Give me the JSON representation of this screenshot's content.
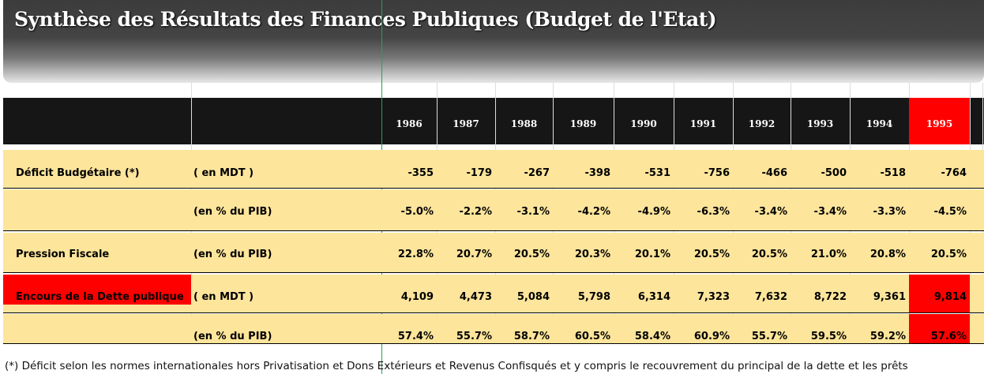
{
  "header": {
    "title": "Synthèse des Résultats des Finances Publiques (Budget de l'Etat)"
  },
  "table": {
    "years": [
      "1986",
      "1987",
      "1988",
      "1989",
      "1990",
      "1991",
      "1992",
      "1993",
      "1994",
      "1995"
    ],
    "rows": [
      {
        "label": "Déficit Budgétaire (*)",
        "unit": "( en MDT )",
        "values": [
          "-355",
          "-179",
          "-267",
          "-398",
          "-531",
          "-756",
          "-466",
          "-500",
          "-518",
          "-764"
        ]
      },
      {
        "unit": "(en % du PIB)",
        "values": [
          "-5.0%",
          "-2.2%",
          "-3.1%",
          "-4.2%",
          "-4.9%",
          "-6.3%",
          "-3.4%",
          "-3.4%",
          "-3.3%",
          "-4.5%"
        ]
      },
      {
        "label": "Pression Fiscale",
        "unit": "(en % du PIB)",
        "values": [
          "22.8%",
          "20.7%",
          "20.5%",
          "20.3%",
          "20.1%",
          "20.5%",
          "20.5%",
          "21.0%",
          "20.8%",
          "20.5%"
        ]
      },
      {
        "label": "Encours de la Dette publique",
        "unit": "( en MDT )",
        "values": [
          "4,109",
          "4,473",
          "5,084",
          "5,798",
          "6,314",
          "7,323",
          "7,632",
          "8,722",
          "9,361",
          "9,814"
        ]
      },
      {
        "unit": "(en % du PIB)",
        "values": [
          "57.4%",
          "55.7%",
          "58.7%",
          "60.5%",
          "58.4%",
          "60.9%",
          "55.7%",
          "59.5%",
          "59.2%",
          "57.6%"
        ]
      }
    ]
  },
  "footnote": "(*) Déficit selon les normes internationales hors Privatisation et Dons Extérieurs et Revenus Confisqués et y compris le recouvrement du principal de la dette et les prêts"
}
